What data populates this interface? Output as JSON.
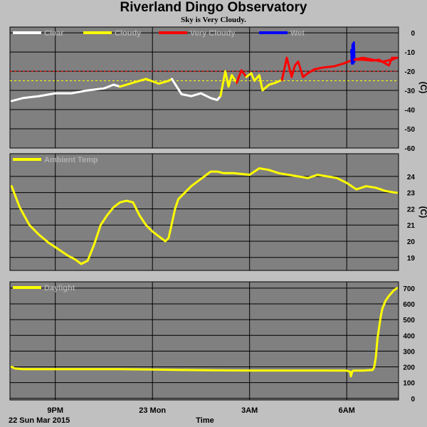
{
  "title": "Riverland Dingo Observatory",
  "subtitle": "Sky is Very Cloudy.",
  "x_axis": {
    "label": "Time",
    "date_label": "22 Sun Mar 2015",
    "ticks": [
      {
        "label": "9PM",
        "hour": 21
      },
      {
        "label": "23 Mon",
        "hour": 24
      },
      {
        "label": "3AM",
        "hour": 27
      },
      {
        "label": "6AM",
        "hour": 30
      }
    ],
    "range_hours": [
      19.6,
      31.6
    ]
  },
  "colors": {
    "plot_bg": "#808080",
    "grid": "#000000",
    "clear": "#ffffff",
    "cloudy": "#ffff00",
    "very_cloudy": "#ff0000",
    "wet": "#0000ff",
    "ambient": "#ffff00",
    "daylight": "#ffff00"
  },
  "chart_data": [
    {
      "type": "line",
      "name": "sky-temperature",
      "ylabel": "(C)",
      "ylim": [
        -60,
        3
      ],
      "yticks": [
        0,
        -10,
        -20,
        -30,
        -40,
        -50,
        -60
      ],
      "grid": true,
      "legend": {
        "placement": "top-left",
        "entries": [
          {
            "label": "Clear",
            "color": "#ffffff"
          },
          {
            "label": "Cloudy",
            "color": "#ffff00"
          },
          {
            "label": "Very Cloudy",
            "color": "#ff0000"
          },
          {
            "label": "Wet",
            "color": "#0000ff"
          }
        ]
      },
      "thresholds": [
        {
          "value": -20,
          "color": "#ff0000"
        },
        {
          "value": -25,
          "color": "#ffff00"
        }
      ],
      "series": [
        {
          "category": "Clear",
          "color": "#ffffff",
          "x": [
            19.65,
            20.0,
            20.5,
            21.0,
            21.5,
            22.0,
            22.5,
            22.8,
            23.0
          ],
          "y": [
            -35.5,
            -34,
            -33,
            -31.5,
            -31.5,
            -30,
            -29,
            -27,
            -28
          ]
        },
        {
          "category": "Cloudy",
          "color": "#ffff00",
          "x": [
            23.0,
            23.5,
            23.8,
            24.2,
            24.5,
            24.6
          ],
          "y": [
            -28,
            -25.5,
            -24,
            -26.5,
            -25,
            -24
          ]
        },
        {
          "category": "Clear",
          "color": "#ffffff",
          "x": [
            24.6,
            24.9,
            25.2,
            25.5,
            25.8,
            26.0,
            26.1
          ],
          "y": [
            -24,
            -32,
            -33,
            -31.5,
            -34,
            -35,
            -33
          ]
        },
        {
          "category": "Cloudy",
          "color": "#ffff00",
          "x": [
            26.1,
            26.25,
            26.35,
            26.45,
            26.6
          ],
          "y": [
            -33,
            -20,
            -28,
            -22,
            -26
          ]
        },
        {
          "category": "Very Cloudy",
          "color": "#ff0000",
          "x": [
            26.6,
            26.75,
            26.9
          ],
          "y": [
            -26,
            -19.5,
            -23
          ]
        },
        {
          "category": "Cloudy",
          "color": "#ffff00",
          "x": [
            26.9,
            27.05,
            27.15,
            27.3,
            27.4,
            27.6,
            27.8,
            28.0
          ],
          "y": [
            -23,
            -21,
            -25,
            -22,
            -30,
            -27,
            -26,
            -24.5
          ]
        },
        {
          "category": "Very Cloudy",
          "color": "#ff0000",
          "x": [
            28.0,
            28.15,
            28.3,
            28.4,
            28.5,
            28.65,
            28.8,
            29.0,
            29.3,
            29.6,
            29.9,
            30.2,
            30.5,
            30.8,
            31.1,
            31.4,
            31.55
          ],
          "y": [
            -24.5,
            -13,
            -23,
            -17,
            -15,
            -23,
            -21,
            -19,
            -18,
            -17.5,
            -16,
            -14,
            -13,
            -14,
            -15,
            -14,
            -13
          ]
        },
        {
          "category": "Wet",
          "color": "#0000ff",
          "x": [
            30.14,
            30.16,
            30.18,
            30.2,
            30.22,
            30.24
          ],
          "y": [
            -9,
            -16,
            -6,
            -16,
            -5,
            -15
          ]
        },
        {
          "category": "Very Cloudy",
          "color": "#ff0000",
          "x": [
            30.24,
            30.5,
            30.8,
            31.0,
            31.2,
            31.3,
            31.4,
            31.55
          ],
          "y": [
            -14,
            -14,
            -14.5,
            -14,
            -16,
            -17,
            -13,
            -13
          ]
        }
      ]
    },
    {
      "type": "line",
      "name": "ambient-temperature",
      "ylabel": "(C)",
      "ylim": [
        18.2,
        25.4
      ],
      "yticks": [
        19,
        20,
        21,
        22,
        23,
        24
      ],
      "grid": true,
      "legend": {
        "placement": "top-left",
        "entries": [
          {
            "label": "Ambient Temp",
            "color": "#ffff00"
          }
        ]
      },
      "series": [
        {
          "name": "Ambient Temp",
          "color": "#ffff00",
          "x": [
            19.65,
            19.9,
            20.2,
            20.5,
            20.8,
            21.1,
            21.4,
            21.6,
            21.8,
            22.0,
            22.2,
            22.4,
            22.6,
            22.8,
            23.0,
            23.2,
            23.4,
            23.6,
            23.8,
            24.0,
            24.2,
            24.4,
            24.5,
            24.6,
            24.7,
            24.8,
            25.0,
            25.2,
            25.4,
            25.6,
            25.8,
            26.0,
            26.2,
            26.5,
            27.0,
            27.3,
            27.6,
            27.9,
            28.2,
            28.5,
            28.8,
            29.1,
            29.4,
            29.7,
            30.0,
            30.3,
            30.6,
            30.9,
            31.2,
            31.5,
            31.55
          ],
          "y": [
            23.4,
            22.1,
            21,
            20.4,
            19.9,
            19.5,
            19.1,
            18.9,
            18.6,
            18.8,
            19.8,
            21,
            21.6,
            22.1,
            22.4,
            22.5,
            22.4,
            21.6,
            21,
            20.6,
            20.3,
            20,
            20.2,
            21.1,
            22,
            22.6,
            23,
            23.4,
            23.7,
            24,
            24.3,
            24.3,
            24.2,
            24.2,
            24.1,
            24.5,
            24.4,
            24.2,
            24.1,
            24,
            23.9,
            24.1,
            24,
            23.9,
            23.6,
            23.2,
            23.4,
            23.3,
            23.1,
            23,
            23
          ]
        }
      ]
    },
    {
      "type": "line",
      "name": "daylight",
      "ylim": [
        -10,
        740
      ],
      "yticks": [
        0,
        100,
        200,
        300,
        400,
        500,
        600,
        700
      ],
      "grid": true,
      "legend": {
        "placement": "top-left",
        "entries": [
          {
            "label": "Daylight",
            "color": "#ffff00"
          }
        ]
      },
      "series": [
        {
          "name": "Daylight",
          "color": "#ffff00",
          "x": [
            19.65,
            19.75,
            20.0,
            21.0,
            22.0,
            23.0,
            24.0,
            25.0,
            26.0,
            27.0,
            28.0,
            28.5,
            29.0,
            29.5,
            30.0,
            30.1,
            30.13,
            30.17,
            30.2,
            30.5,
            30.8,
            30.85,
            30.9,
            30.95,
            31.0,
            31.05,
            31.1,
            31.2,
            31.3,
            31.45,
            31.55
          ],
          "y": [
            200,
            190,
            185,
            185,
            185,
            185,
            183,
            180,
            178,
            177,
            177,
            177,
            177,
            177,
            176,
            170,
            140,
            170,
            176,
            176,
            180,
            200,
            260,
            380,
            450,
            520,
            570,
            620,
            650,
            685,
            700
          ]
        }
      ]
    }
  ]
}
